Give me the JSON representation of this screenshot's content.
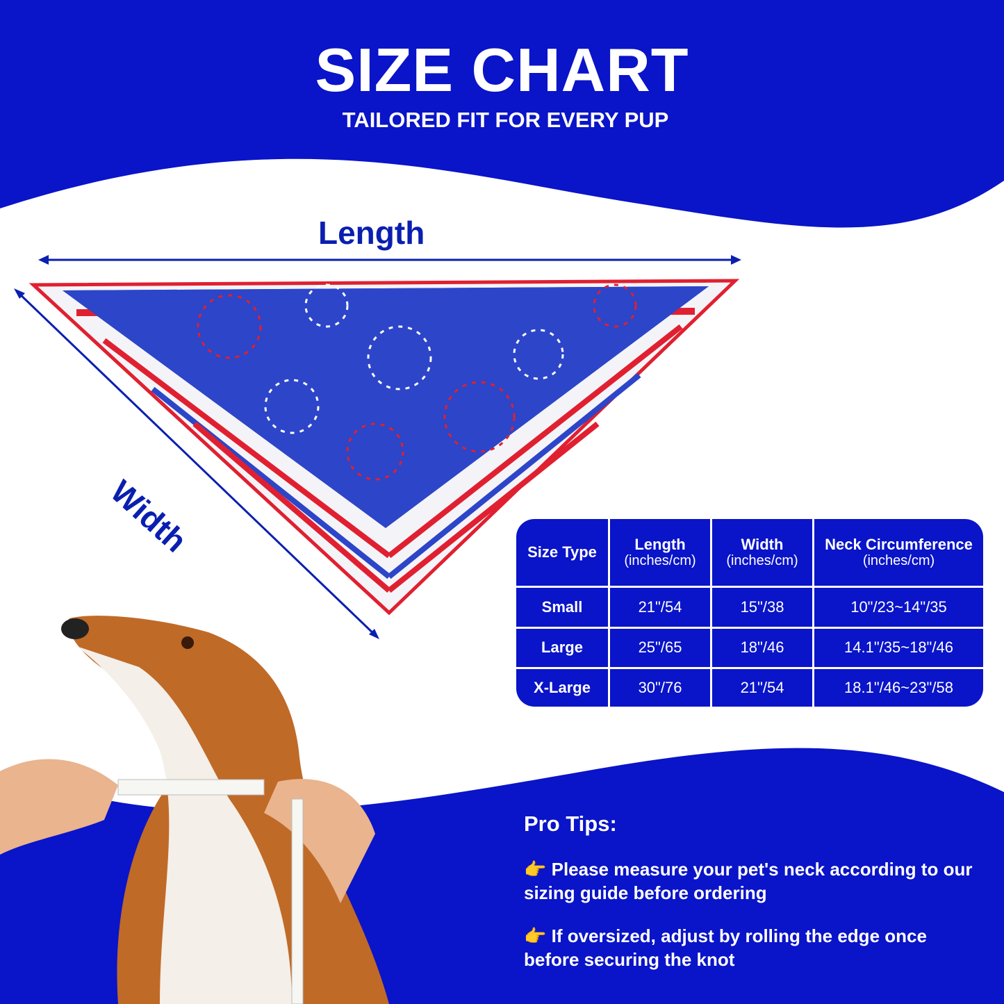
{
  "header": {
    "title": "SIZE CHART",
    "subtitle": "TAILORED FIT FOR EVERY PUP"
  },
  "diagram": {
    "length_label": "Length",
    "width_label": "Width"
  },
  "table": {
    "headers": [
      {
        "title": "Size Type",
        "unit": ""
      },
      {
        "title": "Length",
        "unit": "(inches/cm)"
      },
      {
        "title": "Width",
        "unit": "(inches/cm)"
      },
      {
        "title": "Neck Circumference",
        "unit": "(inches/cm)"
      }
    ],
    "rows": [
      [
        "Small",
        "21\"/54",
        "15\"/38",
        "10\"/23~14\"/35"
      ],
      [
        "Large",
        "25\"/65",
        "18\"/46",
        "14.1\"/35~18\"/46"
      ],
      [
        "X-Large",
        "30\"/76",
        "21\"/54",
        "18.1\"/46~23\"/58"
      ]
    ]
  },
  "tips": {
    "heading": "Pro Tips:",
    "icon": "pointing-hand-icon",
    "items": [
      "Please measure your pet's neck according to our sizing guide before ordering",
      "If oversized, adjust by rolling the edge once before securing the knot"
    ]
  },
  "colors": {
    "brand_blue": "#0a14c8",
    "accent_red": "#e02030"
  }
}
